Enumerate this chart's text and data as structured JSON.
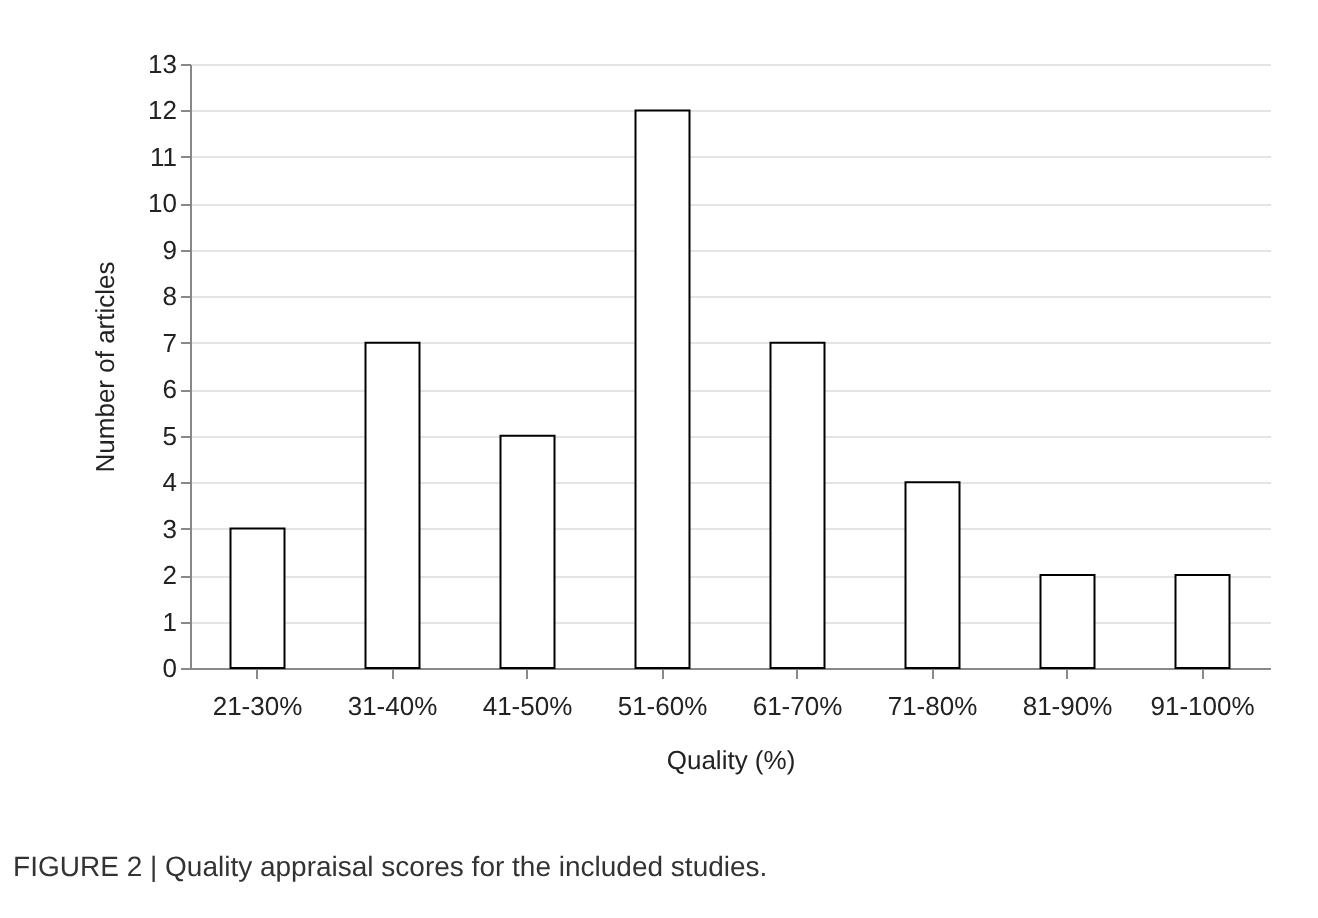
{
  "chart_data": {
    "type": "bar",
    "xlabel": "Quality (%)",
    "ylabel": "Number of articles",
    "categories": [
      "21-30%",
      "31-40%",
      "41-50%",
      "51-60%",
      "61-70%",
      "71-80%",
      "81-90%",
      "91-100%"
    ],
    "values": [
      3,
      7,
      5,
      12,
      7,
      4,
      2,
      2
    ],
    "color": "#ffffff",
    "ylim": [
      0,
      13
    ],
    "yticks": [
      0,
      1,
      2,
      3,
      4,
      5,
      6,
      7,
      8,
      9,
      10,
      11,
      12,
      13
    ],
    "grid": "y",
    "annotations": [
      "FIGURE 2 | Quality appraisal scores for the included studies."
    ]
  }
}
